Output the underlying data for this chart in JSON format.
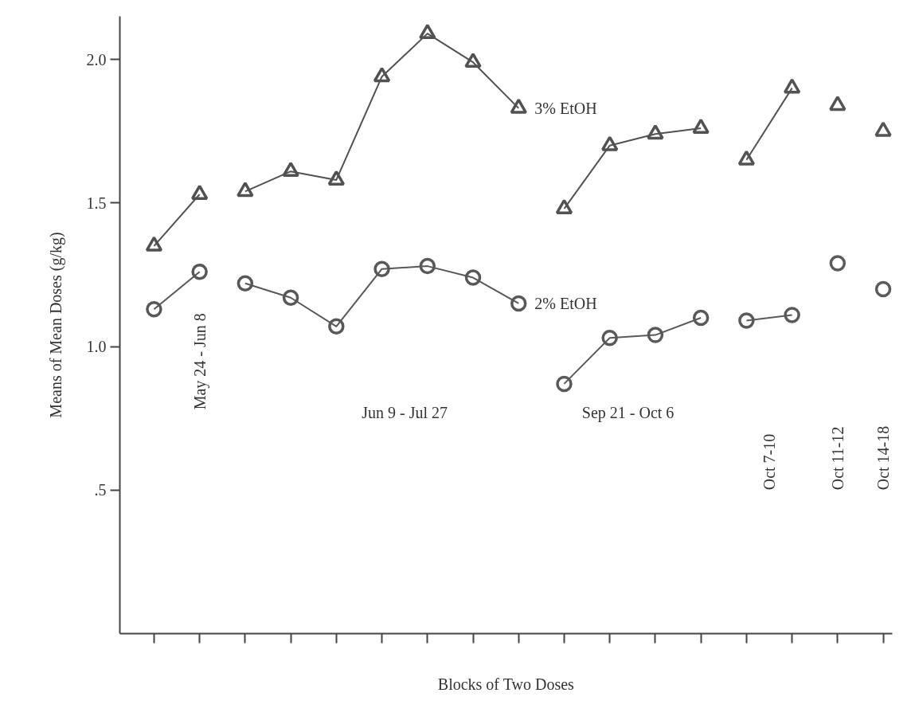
{
  "chart_data": {
    "type": "line",
    "xlabel": "Blocks of Two Doses",
    "ylabel": "Means of Mean Doses (g/kg)",
    "categories": [
      null,
      null,
      null,
      null,
      null,
      null,
      null,
      null,
      null,
      null,
      null,
      null,
      null,
      null,
      null,
      null,
      null
    ],
    "ylim": [
      0,
      2.15
    ],
    "yticks": [
      {
        "value": 0.5,
        "label": ".5"
      },
      {
        "value": 1,
        "label": "1.0"
      },
      {
        "value": 1.5,
        "label": "1.5"
      },
      {
        "value": 2,
        "label": "2.0"
      }
    ],
    "tick_labels": "y",
    "grid": false,
    "line_style": "solid",
    "legend": "right",
    "series": [
      {
        "marker": "triangle",
        "color": "#505050",
        "values": [
          1.35,
          1.53,
          null,
          null,
          null,
          null,
          null,
          null,
          null,
          null,
          null,
          null,
          null,
          null,
          null,
          null,
          null
        ]
      },
      {
        "name": "3% EtOH",
        "marker": "triangle",
        "color": "#515151",
        "values": [
          null,
          null,
          1.54,
          1.61,
          1.58,
          1.94,
          2.09,
          1.99,
          1.83,
          null,
          null,
          null,
          null,
          null,
          null,
          null,
          null
        ]
      },
      {
        "marker": "triangle",
        "color": "#525252",
        "values": [
          null,
          null,
          null,
          null,
          null,
          null,
          null,
          null,
          null,
          1.48,
          1.7,
          1.74,
          1.76,
          null,
          null,
          null,
          null
        ]
      },
      {
        "marker": "triangle",
        "color": "#535353",
        "values": [
          null,
          null,
          null,
          null,
          null,
          null,
          null,
          null,
          null,
          null,
          null,
          null,
          null,
          1.65,
          1.9,
          null,
          null
        ]
      },
      {
        "type": "scatter",
        "marker": "triangle",
        "color": "#545454",
        "values": [
          null,
          null,
          null,
          null,
          null,
          null,
          null,
          null,
          null,
          null,
          null,
          null,
          null,
          null,
          null,
          1.84,
          1.75
        ]
      },
      {
        "marker": "circle",
        "color": "#575757",
        "values": [
          1.13,
          1.26,
          null,
          null,
          null,
          null,
          null,
          null,
          null,
          null,
          null,
          null,
          null,
          null,
          null,
          null,
          null
        ]
      },
      {
        "name": "2% EtOH",
        "marker": "circle",
        "color": "#585858",
        "values": [
          null,
          null,
          1.22,
          1.17,
          1.07,
          1.27,
          1.28,
          1.24,
          1.15,
          null,
          null,
          null,
          null,
          null,
          null,
          null,
          null
        ]
      },
      {
        "marker": "circle",
        "color": "#595959",
        "values": [
          null,
          null,
          null,
          null,
          null,
          null,
          null,
          null,
          null,
          0.87,
          1.03,
          1.04,
          1.1,
          null,
          null,
          null,
          null
        ]
      },
      {
        "marker": "circle",
        "color": "#5a5a5a",
        "values": [
          null,
          null,
          null,
          null,
          null,
          null,
          null,
          null,
          null,
          null,
          null,
          null,
          null,
          1.09,
          1.11,
          null,
          null
        ]
      },
      {
        "type": "scatter",
        "marker": "circle",
        "color": "#5b5b5b",
        "values": [
          null,
          null,
          null,
          null,
          null,
          null,
          null,
          null,
          null,
          null,
          null,
          null,
          null,
          null,
          null,
          1.29,
          1.2
        ]
      }
    ],
    "annotations": [
      "May 24 - Jun 8",
      "Jun 9 - Jul 27",
      "Sep 21 - Oct 6",
      "Oct 7-10",
      "Oct 11-12",
      "Oct 14-18"
    ]
  }
}
